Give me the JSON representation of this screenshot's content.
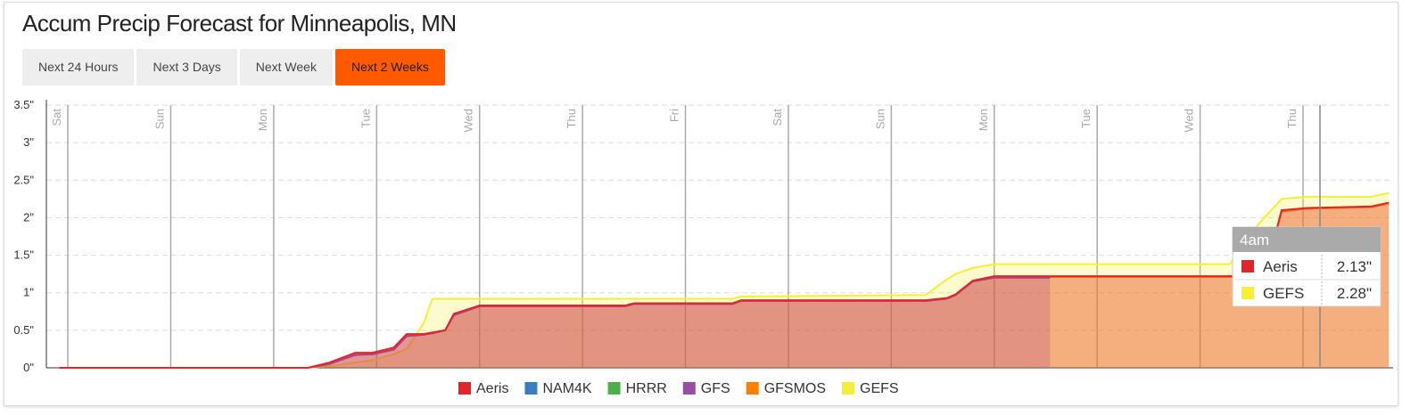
{
  "chart_data": {
    "type": "line",
    "title": "Accum Precip Forecast for Minneapolis, MN",
    "x": [
      -2,
      56,
      61,
      67,
      71,
      76,
      79,
      83,
      85,
      88,
      90,
      96,
      130,
      132,
      155,
      157,
      200,
      205,
      207,
      211,
      216,
      229,
      271,
      275,
      279,
      283,
      289,
      304,
      308
    ],
    "series": [
      {
        "name": "Aeris",
        "color": "#e0262b",
        "values": [
          0,
          0,
          0.07,
          0.2,
          0.2,
          0.27,
          0.45,
          0.45,
          0.47,
          0.5,
          0.72,
          0.83,
          0.83,
          0.86,
          0.86,
          0.9,
          0.9,
          0.93,
          0.98,
          1.16,
          1.22,
          1.22,
          1.22,
          1.22,
          1.22,
          2.1,
          2.13,
          2.15,
          2.2
        ]
      },
      {
        "name": "NAM4K",
        "color": "#3a7ebf",
        "values": [
          null,
          null,
          null,
          null,
          null,
          null,
          null,
          null,
          null,
          null,
          null,
          null,
          null,
          null,
          null,
          null,
          null,
          null,
          null,
          null,
          null,
          null,
          null,
          null,
          null,
          null,
          null,
          null,
          null
        ]
      },
      {
        "name": "HRRR",
        "color": "#4daf4a",
        "values": [
          null,
          null,
          null,
          null,
          null,
          null,
          null,
          null,
          null,
          null,
          null,
          null,
          null,
          null,
          null,
          null,
          null,
          null,
          null,
          null,
          null,
          null,
          null,
          null,
          null,
          null,
          null,
          null,
          null
        ]
      },
      {
        "name": "GFS",
        "color": "#984ea3",
        "values": [
          0,
          0,
          0.05,
          0.17,
          0.18,
          0.24,
          0.42,
          0.44,
          0.46,
          0.5,
          0.7,
          0.82,
          0.82,
          0.85,
          0.85,
          0.89,
          0.89,
          0.92,
          0.97,
          1.15,
          1.2,
          1.2,
          null,
          null,
          null,
          null,
          null,
          null,
          null
        ]
      },
      {
        "name": "GFSMOS",
        "color": "#ff7f00",
        "values": [
          0,
          0,
          0.06,
          0.19,
          0.19,
          0.26,
          0.44,
          0.45,
          0.47,
          0.5,
          0.71,
          0.82,
          0.82,
          0.85,
          0.85,
          0.89,
          0.89,
          0.92,
          0.97,
          1.15,
          1.21,
          1.21,
          1.21,
          1.21,
          1.21,
          2.08,
          2.12,
          2.14,
          2.19
        ]
      },
      {
        "name": "GEFS",
        "color": "#f5ee3a",
        "values": [
          0,
          0,
          0.02,
          0.07,
          0.1,
          0.18,
          0.25,
          0.6,
          0.92,
          0.92,
          0.92,
          0.92,
          0.92,
          0.92,
          0.92,
          0.95,
          0.97,
          1.18,
          1.25,
          1.33,
          1.38,
          1.38,
          1.38,
          1.75,
          2.0,
          2.25,
          2.28,
          2.28,
          2.33
        ]
      }
    ],
    "area": true,
    "xlim": [
      -5,
      309
    ],
    "xticks": [
      {
        "value": 0,
        "label": "Sat"
      },
      {
        "value": 24,
        "label": "Sun"
      },
      {
        "value": 48,
        "label": "Mon"
      },
      {
        "value": 72,
        "label": "Tue"
      },
      {
        "value": 96,
        "label": "Wed"
      },
      {
        "value": 120,
        "label": "Thu"
      },
      {
        "value": 144,
        "label": "Fri"
      },
      {
        "value": 168,
        "label": "Sat"
      },
      {
        "value": 192,
        "label": "Sun"
      },
      {
        "value": 216,
        "label": "Mon"
      },
      {
        "value": 240,
        "label": "Tue"
      },
      {
        "value": 264,
        "label": "Wed"
      },
      {
        "value": 288,
        "label": "Thu"
      }
    ],
    "ylim": [
      0,
      3.5
    ],
    "yticks": [
      {
        "value": 0,
        "label": "0\""
      },
      {
        "value": 0.5,
        "label": "0.5\""
      },
      {
        "value": 1,
        "label": "1\""
      },
      {
        "value": 1.5,
        "label": "1.5\""
      },
      {
        "value": 2,
        "label": "2\""
      },
      {
        "value": 2.5,
        "label": "2.5\""
      },
      {
        "value": 3,
        "label": "3\""
      },
      {
        "value": 3.5,
        "label": "3.5\""
      }
    ],
    "grid": true
  },
  "tabs": [
    "Next 24 Hours",
    "Next 3 Days",
    "Next Week",
    "Next 2 Weeks"
  ],
  "active_tab": 3,
  "tooltip": {
    "title": "4am",
    "rows": [
      {
        "value": 2.13,
        "label": "2.13\""
      },
      {
        "value": 2.28,
        "label": "2.28\""
      }
    ]
  }
}
